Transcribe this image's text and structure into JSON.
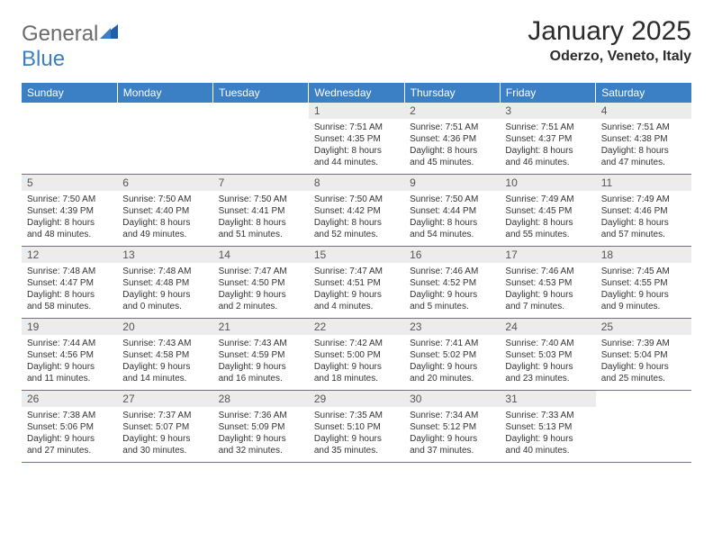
{
  "logo": {
    "text1": "General",
    "text2": "Blue"
  },
  "title": "January 2025",
  "location": "Oderzo, Veneto, Italy",
  "colors": {
    "header_bg": "#3b7fc4",
    "header_text": "#ffffff",
    "daynum_bg": "#ececec",
    "daynum_text": "#555555",
    "body_text": "#333333",
    "rule": "#3b7fc4",
    "logo_gray": "#6b6b6b",
    "logo_blue": "#3b7fc4"
  },
  "weekdays": [
    "Sunday",
    "Monday",
    "Tuesday",
    "Wednesday",
    "Thursday",
    "Friday",
    "Saturday"
  ],
  "weeks": [
    [
      {
        "n": "",
        "lines": [
          "",
          "",
          "",
          ""
        ]
      },
      {
        "n": "",
        "lines": [
          "",
          "",
          "",
          ""
        ]
      },
      {
        "n": "",
        "lines": [
          "",
          "",
          "",
          ""
        ]
      },
      {
        "n": "1",
        "lines": [
          "Sunrise: 7:51 AM",
          "Sunset: 4:35 PM",
          "Daylight: 8 hours",
          "and 44 minutes."
        ]
      },
      {
        "n": "2",
        "lines": [
          "Sunrise: 7:51 AM",
          "Sunset: 4:36 PM",
          "Daylight: 8 hours",
          "and 45 minutes."
        ]
      },
      {
        "n": "3",
        "lines": [
          "Sunrise: 7:51 AM",
          "Sunset: 4:37 PM",
          "Daylight: 8 hours",
          "and 46 minutes."
        ]
      },
      {
        "n": "4",
        "lines": [
          "Sunrise: 7:51 AM",
          "Sunset: 4:38 PM",
          "Daylight: 8 hours",
          "and 47 minutes."
        ]
      }
    ],
    [
      {
        "n": "5",
        "lines": [
          "Sunrise: 7:50 AM",
          "Sunset: 4:39 PM",
          "Daylight: 8 hours",
          "and 48 minutes."
        ]
      },
      {
        "n": "6",
        "lines": [
          "Sunrise: 7:50 AM",
          "Sunset: 4:40 PM",
          "Daylight: 8 hours",
          "and 49 minutes."
        ]
      },
      {
        "n": "7",
        "lines": [
          "Sunrise: 7:50 AM",
          "Sunset: 4:41 PM",
          "Daylight: 8 hours",
          "and 51 minutes."
        ]
      },
      {
        "n": "8",
        "lines": [
          "Sunrise: 7:50 AM",
          "Sunset: 4:42 PM",
          "Daylight: 8 hours",
          "and 52 minutes."
        ]
      },
      {
        "n": "9",
        "lines": [
          "Sunrise: 7:50 AM",
          "Sunset: 4:44 PM",
          "Daylight: 8 hours",
          "and 54 minutes."
        ]
      },
      {
        "n": "10",
        "lines": [
          "Sunrise: 7:49 AM",
          "Sunset: 4:45 PM",
          "Daylight: 8 hours",
          "and 55 minutes."
        ]
      },
      {
        "n": "11",
        "lines": [
          "Sunrise: 7:49 AM",
          "Sunset: 4:46 PM",
          "Daylight: 8 hours",
          "and 57 minutes."
        ]
      }
    ],
    [
      {
        "n": "12",
        "lines": [
          "Sunrise: 7:48 AM",
          "Sunset: 4:47 PM",
          "Daylight: 8 hours",
          "and 58 minutes."
        ]
      },
      {
        "n": "13",
        "lines": [
          "Sunrise: 7:48 AM",
          "Sunset: 4:48 PM",
          "Daylight: 9 hours",
          "and 0 minutes."
        ]
      },
      {
        "n": "14",
        "lines": [
          "Sunrise: 7:47 AM",
          "Sunset: 4:50 PM",
          "Daylight: 9 hours",
          "and 2 minutes."
        ]
      },
      {
        "n": "15",
        "lines": [
          "Sunrise: 7:47 AM",
          "Sunset: 4:51 PM",
          "Daylight: 9 hours",
          "and 4 minutes."
        ]
      },
      {
        "n": "16",
        "lines": [
          "Sunrise: 7:46 AM",
          "Sunset: 4:52 PM",
          "Daylight: 9 hours",
          "and 5 minutes."
        ]
      },
      {
        "n": "17",
        "lines": [
          "Sunrise: 7:46 AM",
          "Sunset: 4:53 PM",
          "Daylight: 9 hours",
          "and 7 minutes."
        ]
      },
      {
        "n": "18",
        "lines": [
          "Sunrise: 7:45 AM",
          "Sunset: 4:55 PM",
          "Daylight: 9 hours",
          "and 9 minutes."
        ]
      }
    ],
    [
      {
        "n": "19",
        "lines": [
          "Sunrise: 7:44 AM",
          "Sunset: 4:56 PM",
          "Daylight: 9 hours",
          "and 11 minutes."
        ]
      },
      {
        "n": "20",
        "lines": [
          "Sunrise: 7:43 AM",
          "Sunset: 4:58 PM",
          "Daylight: 9 hours",
          "and 14 minutes."
        ]
      },
      {
        "n": "21",
        "lines": [
          "Sunrise: 7:43 AM",
          "Sunset: 4:59 PM",
          "Daylight: 9 hours",
          "and 16 minutes."
        ]
      },
      {
        "n": "22",
        "lines": [
          "Sunrise: 7:42 AM",
          "Sunset: 5:00 PM",
          "Daylight: 9 hours",
          "and 18 minutes."
        ]
      },
      {
        "n": "23",
        "lines": [
          "Sunrise: 7:41 AM",
          "Sunset: 5:02 PM",
          "Daylight: 9 hours",
          "and 20 minutes."
        ]
      },
      {
        "n": "24",
        "lines": [
          "Sunrise: 7:40 AM",
          "Sunset: 5:03 PM",
          "Daylight: 9 hours",
          "and 23 minutes."
        ]
      },
      {
        "n": "25",
        "lines": [
          "Sunrise: 7:39 AM",
          "Sunset: 5:04 PM",
          "Daylight: 9 hours",
          "and 25 minutes."
        ]
      }
    ],
    [
      {
        "n": "26",
        "lines": [
          "Sunrise: 7:38 AM",
          "Sunset: 5:06 PM",
          "Daylight: 9 hours",
          "and 27 minutes."
        ]
      },
      {
        "n": "27",
        "lines": [
          "Sunrise: 7:37 AM",
          "Sunset: 5:07 PM",
          "Daylight: 9 hours",
          "and 30 minutes."
        ]
      },
      {
        "n": "28",
        "lines": [
          "Sunrise: 7:36 AM",
          "Sunset: 5:09 PM",
          "Daylight: 9 hours",
          "and 32 minutes."
        ]
      },
      {
        "n": "29",
        "lines": [
          "Sunrise: 7:35 AM",
          "Sunset: 5:10 PM",
          "Daylight: 9 hours",
          "and 35 minutes."
        ]
      },
      {
        "n": "30",
        "lines": [
          "Sunrise: 7:34 AM",
          "Sunset: 5:12 PM",
          "Daylight: 9 hours",
          "and 37 minutes."
        ]
      },
      {
        "n": "31",
        "lines": [
          "Sunrise: 7:33 AM",
          "Sunset: 5:13 PM",
          "Daylight: 9 hours",
          "and 40 minutes."
        ]
      },
      {
        "n": "",
        "lines": [
          "",
          "",
          "",
          ""
        ]
      }
    ]
  ]
}
